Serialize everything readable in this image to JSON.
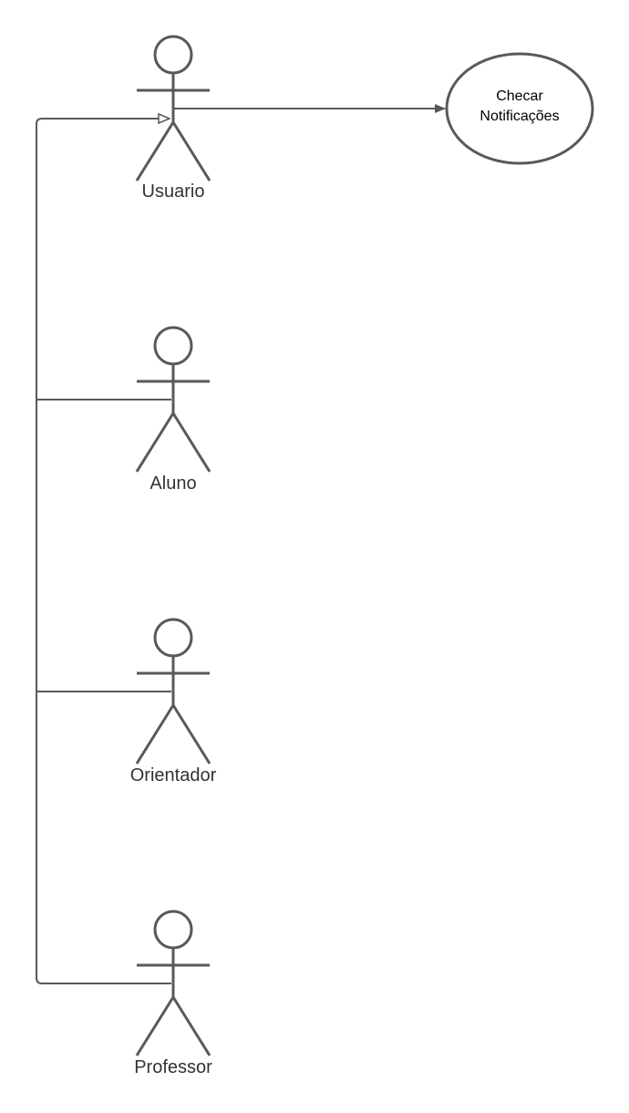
{
  "diagram": {
    "type": "uml-use-case",
    "actors": {
      "usuario": "Usuario",
      "aluno": "Aluno",
      "orientador": "Orientador",
      "professor": "Professor"
    },
    "use_case": {
      "line1": "Checar",
      "line2": "Notificações"
    },
    "relations": [
      {
        "from": "Usuario",
        "to": "Checar Notificações",
        "kind": "association"
      },
      {
        "from": "Aluno",
        "to": "Usuario",
        "kind": "generalization"
      },
      {
        "from": "Orientador",
        "to": "Usuario",
        "kind": "generalization"
      },
      {
        "from": "Professor",
        "to": "Usuario",
        "kind": "generalization"
      }
    ],
    "colors": {
      "line": "#595959",
      "text": "#333333",
      "background": "#ffffff"
    }
  }
}
